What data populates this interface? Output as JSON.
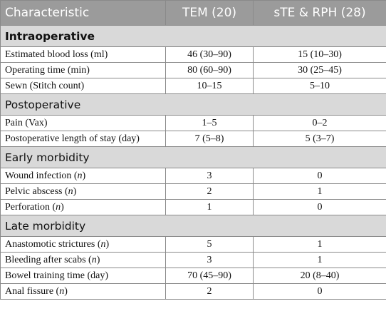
{
  "header": {
    "col1": "Characteristic",
    "col2": "TEM (20)",
    "col3": "sTE & RPH (28)"
  },
  "sections": [
    {
      "title": "Intraoperative",
      "rows": [
        {
          "label": "Estimated blood loss (ml)",
          "tem": "46 (30–90)",
          "ste": "15 (10–30)"
        },
        {
          "label": "Operating time (min)",
          "tem": "80 (60–90)",
          "ste": "30 (25–45)"
        },
        {
          "label": "Sewn (Stitch count)",
          "tem": "10–15",
          "ste": "5–10"
        }
      ]
    },
    {
      "title": "Postoperative",
      "rows": [
        {
          "label": "Pain (Vax)",
          "tem": "1–5",
          "ste": "0–2"
        },
        {
          "label": "Postoperative length of stay (day)",
          "tem": "7 (5–8)",
          "ste": "5 (3–7)"
        }
      ]
    },
    {
      "title": "Early morbidity",
      "rows": [
        {
          "label": "Wound infection (",
          "label_n": "n",
          "label_end": ")",
          "tem": "3",
          "ste": "0"
        },
        {
          "label": "Pelvic abscess (",
          "label_n": "n",
          "label_end": ")",
          "tem": "2",
          "ste": "1"
        },
        {
          "label": "Perforation (",
          "label_n": "n",
          "label_end": ")",
          "tem": "1",
          "ste": "0"
        }
      ]
    },
    {
      "title": "Late morbidity",
      "rows": [
        {
          "label": "Anastomotic strictures (",
          "label_n": "n",
          "label_end": ")",
          "tem": "5",
          "ste": "1"
        },
        {
          "label": "Bleeding after scabs (",
          "label_n": "n",
          "label_end": ")",
          "tem": "3",
          "ste": "1"
        },
        {
          "label": "Bowel training time (day)",
          "tem": "70 (45–90)",
          "ste": "20 (8–40)"
        },
        {
          "label": "Anal fissure (",
          "label_n": "n",
          "label_end": ")",
          "tem": "2",
          "ste": "0"
        }
      ]
    }
  ]
}
